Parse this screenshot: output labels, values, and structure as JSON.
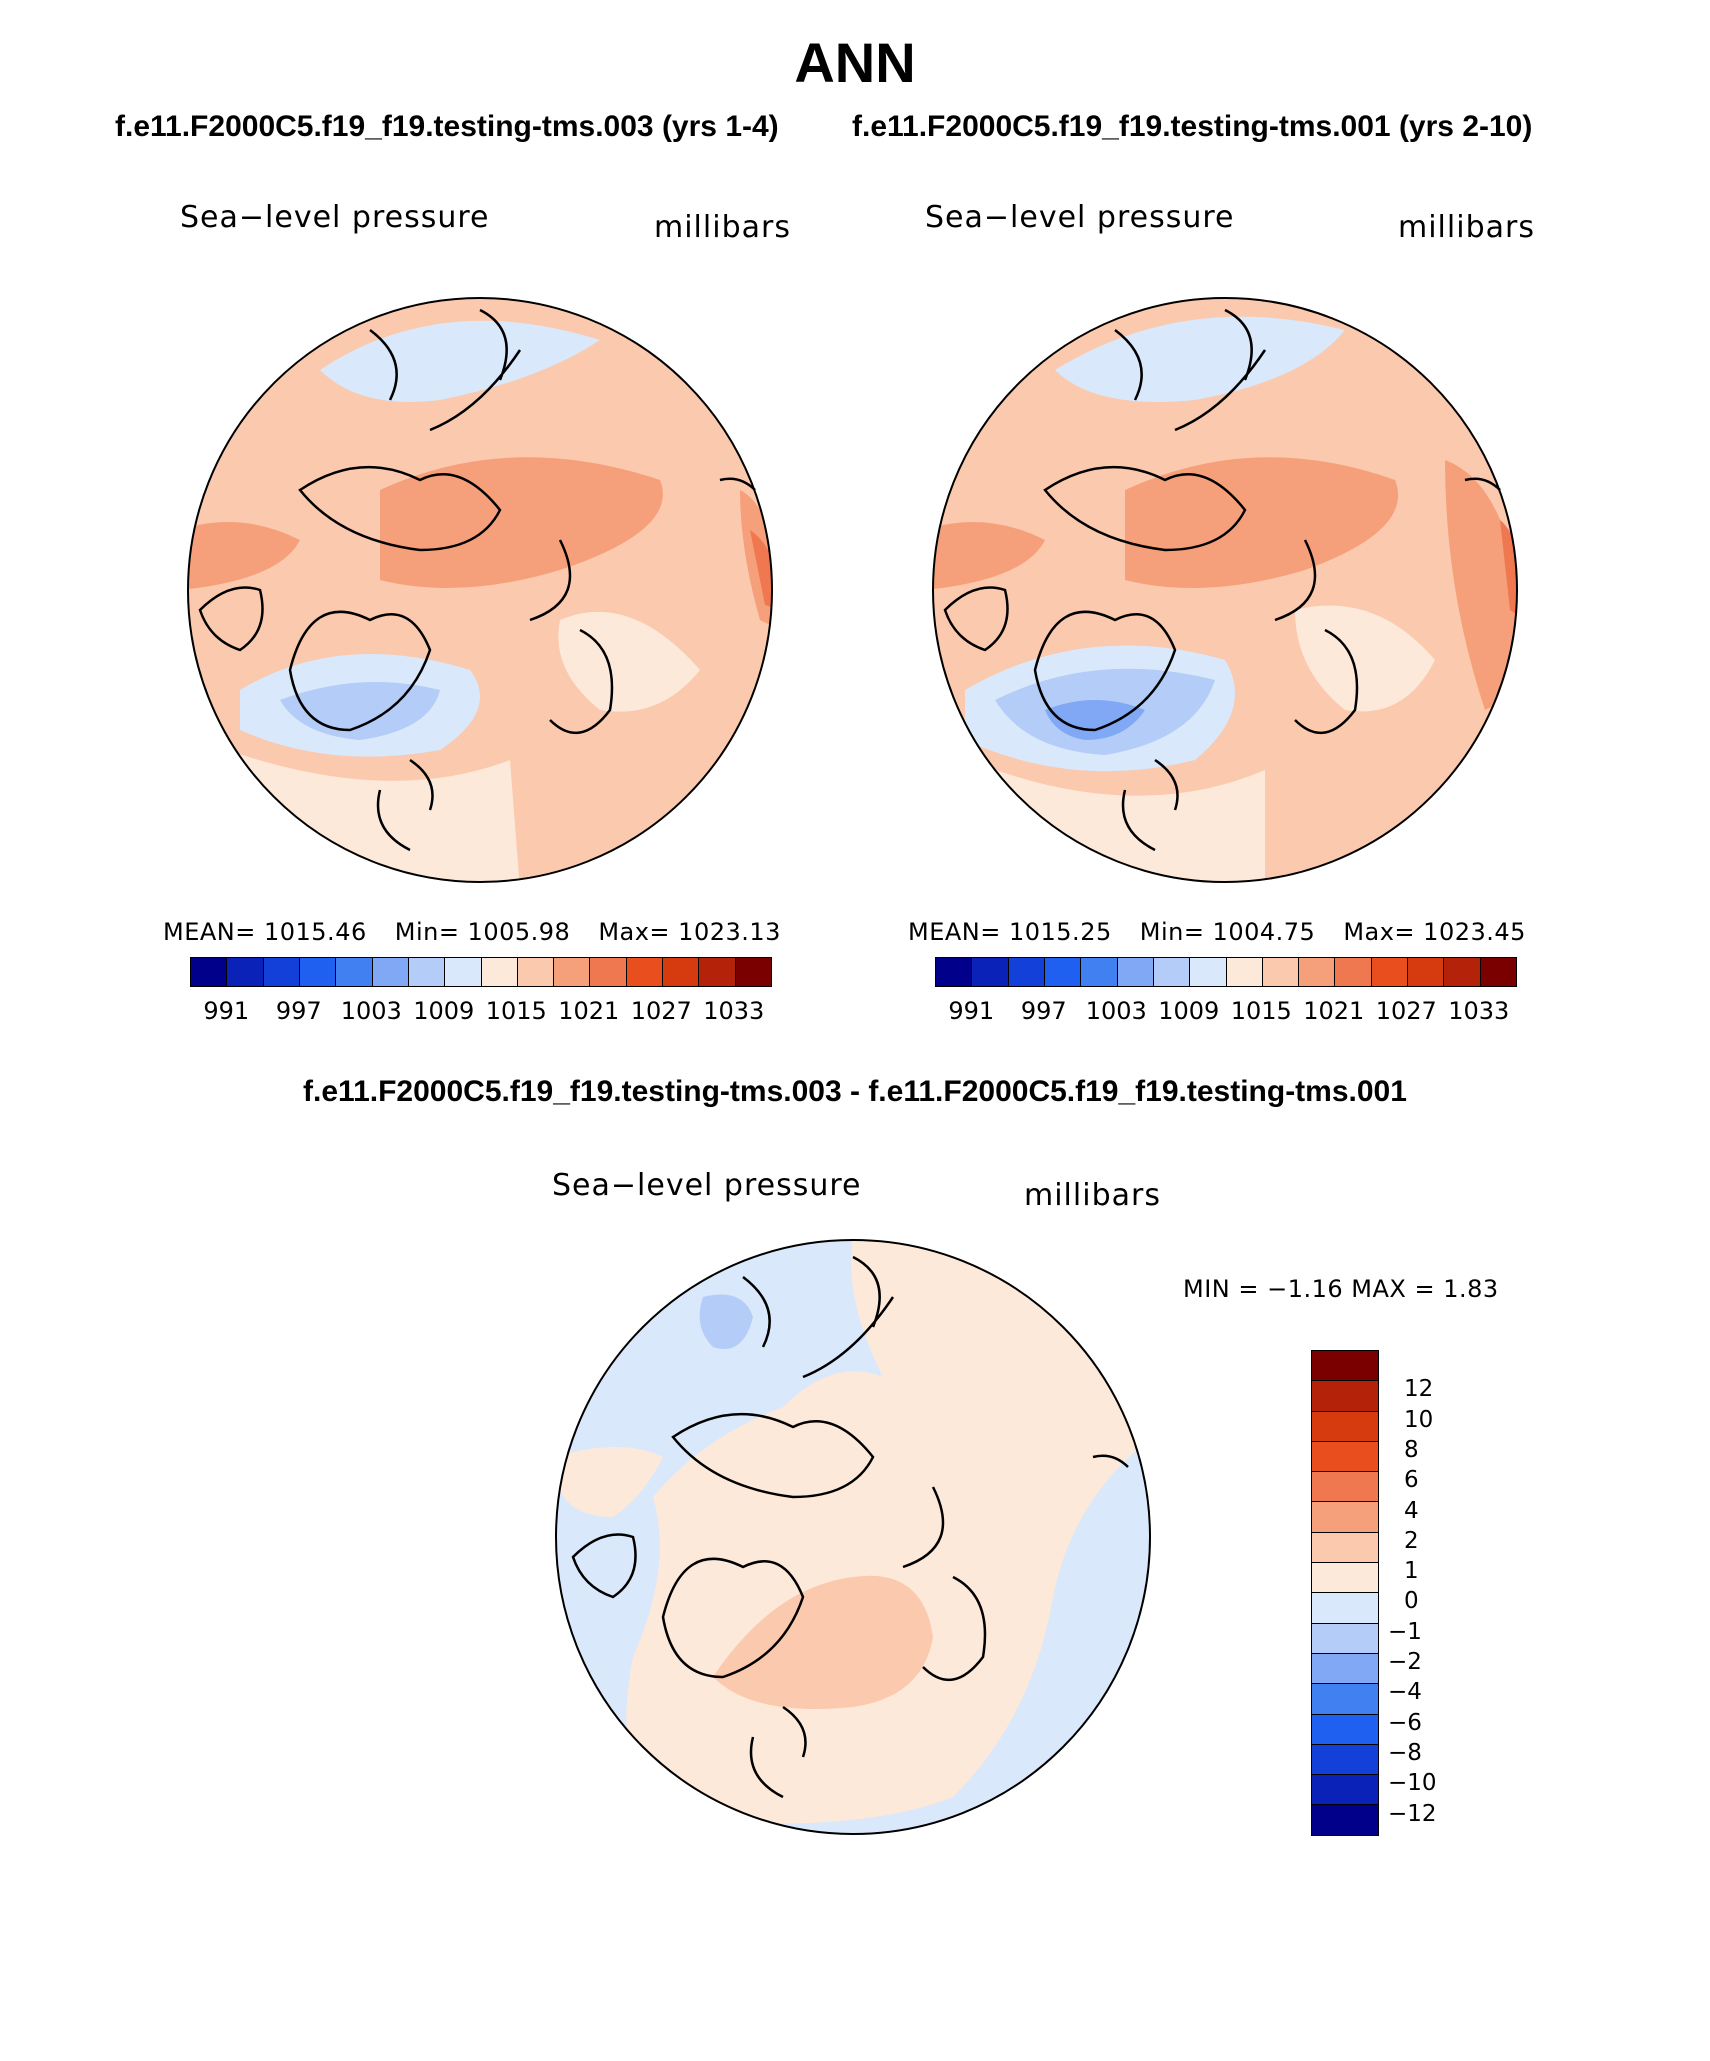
{
  "title": "ANN",
  "case1_title": "f.e11.F2000C5.f19_f19.testing-tms.003 (yrs 1-4)",
  "case2_title": "f.e11.F2000C5.f19_f19.testing-tms.001 (yrs 2-10)",
  "diff_title": "f.e11.F2000C5.f19_f19.testing-tms.003 - f.e11.F2000C5.f19_f19.testing-tms.001",
  "panels": [
    {
      "variable": "Sea−level pressure",
      "units": "millibars",
      "mean_label": "MEAN=  1015.46",
      "min_label": "Min=  1005.98",
      "max_label": "Max=  1023.13"
    },
    {
      "variable": "Sea−level pressure",
      "units": "millibars",
      "mean_label": "MEAN=  1015.25",
      "min_label": "Min=  1004.75",
      "max_label": "Max=  1023.45"
    }
  ],
  "diff_panel": {
    "variable": "Sea−level pressure",
    "units": "millibars",
    "minmax_label": "MIN =   −1.16  MAX =     1.83"
  },
  "colorbar_abs": {
    "colors": [
      "#00008b",
      "#0a22b8",
      "#1240d8",
      "#2060f0",
      "#4080f0",
      "#80a8f5",
      "#b3cdf8",
      "#d9e8fa",
      "#fde9da",
      "#fbc9ad",
      "#f5a07a",
      "#f07850",
      "#e84e1e",
      "#d63a0f",
      "#b5220a",
      "#7a0000"
    ],
    "tick_labels": [
      "991",
      "997",
      "1003",
      "1009",
      "1015",
      "1021",
      "1027",
      "1033"
    ]
  },
  "colorbar_diff": {
    "colors_top_to_bottom": [
      "#7a0000",
      "#b5220a",
      "#d63a0f",
      "#e84e1e",
      "#f07850",
      "#f5a07a",
      "#fbc9ad",
      "#fde9da",
      "#d9e8fa",
      "#b3cdf8",
      "#80a8f5",
      "#4080f0",
      "#2060f0",
      "#1240d8",
      "#0a22b8",
      "#00008b"
    ],
    "tick_labels": [
      "12",
      "10",
      "8",
      "6",
      "4",
      "2",
      "1",
      "0",
      "−1",
      "−2",
      "−4",
      "−6",
      "−8",
      "−10",
      "−12"
    ]
  }
}
